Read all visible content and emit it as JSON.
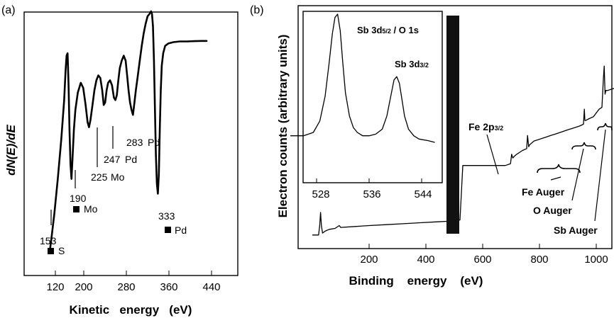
{
  "chart_data": [
    {
      "panel_label": "(a)",
      "type": "line",
      "xlabel": "Kinetic   energy   (eV)",
      "ylabel": "dN(E)/dE",
      "xlim": [
        100,
        450
      ],
      "x_ticks": [
        "120",
        "200",
        "280",
        "360",
        "440"
      ],
      "x_tick_values": [
        120,
        200,
        280,
        360,
        440
      ],
      "ylim": [
        0,
        100
      ],
      "grid": false,
      "series": [
        {
          "x": [
            108,
            112,
            118,
            125,
            132,
            138,
            141,
            143,
            145,
            147,
            149,
            151,
            153,
            155,
            158,
            161,
            166,
            172,
            177,
            182,
            186,
            189,
            192,
            196,
            200,
            204,
            208,
            212,
            216,
            219,
            222,
            225,
            228,
            232,
            236,
            240,
            243,
            246,
            249,
            252,
            256,
            260,
            264,
            267,
            270,
            273,
            276,
            279,
            282,
            285,
            289,
            293,
            297,
            301,
            305,
            309,
            313,
            316,
            318,
            320,
            322,
            324,
            326,
            328,
            330,
            332,
            334,
            336,
            338,
            341,
            345,
            352,
            362,
            375,
            390,
            405,
            420,
            430
          ],
          "y": [
            2,
            8,
            18,
            32,
            48,
            64,
            76,
            82,
            83,
            70,
            52,
            38,
            32,
            40,
            52,
            60,
            67,
            71,
            69,
            62,
            55,
            53,
            56,
            62,
            68,
            72,
            74,
            73,
            68,
            62,
            63,
            68,
            71,
            72,
            70,
            65,
            64,
            66,
            72,
            77,
            80,
            82,
            80,
            74,
            68,
            63,
            60,
            58,
            63,
            68,
            74,
            80,
            86,
            91,
            95,
            98,
            99,
            100,
            99,
            94,
            80,
            60,
            42,
            30,
            26,
            34,
            52,
            68,
            78,
            83,
            86,
            87,
            87.5,
            87.8,
            87.8,
            87.9,
            88,
            88
          ]
        }
      ],
      "annotations": [
        {
          "value": "153",
          "element": "S"
        },
        {
          "value": "190",
          "element": "Mo"
        },
        {
          "value": "225",
          "element": "Mo"
        },
        {
          "value": "247",
          "element": "Pd"
        },
        {
          "value": "283",
          "element": "Pd"
        },
        {
          "value": "333",
          "element": "Pd"
        }
      ]
    },
    {
      "panel_label": "(b)",
      "type": "line",
      "xlabel": "Binding    energy    (eV)",
      "ylabel": "Electron counts (arbitrary units)",
      "xlim": [
        0,
        1100
      ],
      "x_ticks": [
        "200",
        "400",
        "600",
        "800",
        "1000"
      ],
      "x_tick_values": [
        200,
        400,
        600,
        800,
        1000
      ],
      "ylim": [
        0,
        100
      ],
      "grid": false,
      "series": [
        {
          "x": [
            0,
            22,
            26,
            29,
            32,
            36,
            45,
            60,
            80,
            95,
            100,
            150,
            200,
            260,
            320,
            380,
            440,
            500,
            520,
            530,
            545,
            560,
            600,
            640,
            680,
            698,
            702,
            706,
            712,
            720,
            740,
            755,
            758,
            762,
            765,
            780,
            800,
            820,
            840,
            860,
            880,
            900,
            920,
            940,
            955,
            958,
            960,
            963,
            975,
            990,
            1000,
            1010,
            1020,
            1025,
            1028,
            1031,
            1034,
            1040,
            1060,
            1080,
            1095
          ],
          "y": [
            5,
            5,
            10,
            17,
            10,
            6,
            7,
            8,
            8.5,
            10,
            9,
            9.5,
            10,
            10.5,
            11,
            11.5,
            12,
            12.5,
            13,
            42,
            42,
            42,
            42,
            42,
            42,
            43,
            48,
            46,
            47,
            48,
            50,
            51,
            58,
            52,
            53,
            55,
            56,
            57,
            58,
            59,
            60,
            61,
            62,
            63,
            64,
            72,
            66,
            66,
            67,
            68,
            70,
            72,
            73,
            88,
            95,
            80,
            82,
            82,
            83,
            84,
            85
          ]
        }
      ],
      "annotations": [
        {
          "label": "Fe 2p",
          "subscript": "3/2"
        },
        {
          "label": "Fe Auger"
        },
        {
          "label": "O Auger"
        },
        {
          "label": "Sb Auger"
        }
      ],
      "inset": {
        "type": "line",
        "xlim": [
          524,
          546
        ],
        "x_ticks": [
          "528",
          "536",
          "544"
        ],
        "x_tick_values": [
          528,
          536,
          544
        ],
        "ylim": [
          0,
          100
        ],
        "series": [
          {
            "x": [
              524,
              526,
              527.5,
              528.5,
              529.3,
              529.9,
              530.4,
              530.8,
              531.2,
              531.6,
              532,
              532.4,
              533,
              533.6,
              534.2,
              535,
              536,
              537,
              538,
              538.7,
              539.3,
              539.8,
              540.2,
              540.6,
              541,
              541.4,
              542,
              542.8,
              543.6,
              545,
              546
            ],
            "y": [
              26,
              26,
              28,
              35,
              50,
              70,
              88,
              98,
              100,
              90,
              70,
              52,
              38,
              31,
              28,
              26,
              26,
              27,
              30,
              38,
              50,
              60,
              62,
              58,
              48,
              38,
              30,
              26,
              24,
              23,
              22
            ]
          }
        ],
        "labels": [
          {
            "main": "Sb 3d",
            "sub": "5/2",
            "rest": " / O 1s"
          },
          {
            "main": "Sb 3d",
            "sub": "3/2",
            "rest": ""
          }
        ]
      }
    }
  ]
}
